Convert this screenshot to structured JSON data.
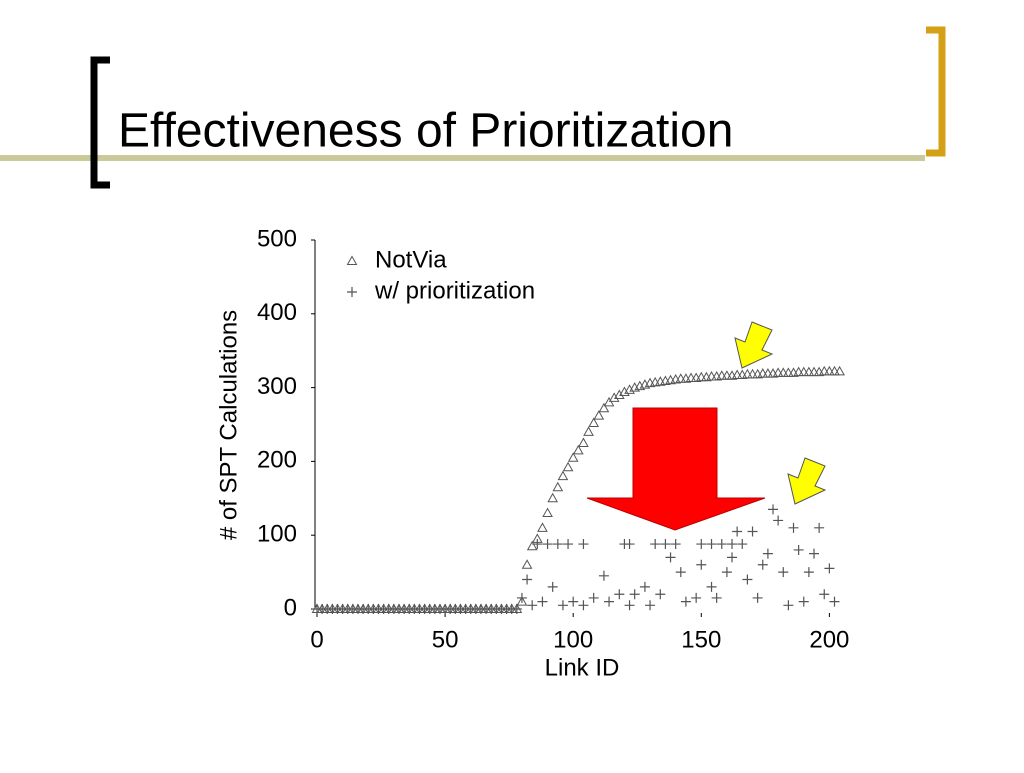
{
  "slide_title": "Effectiveness of Prioritization",
  "chart_data": {
    "type": "scatter",
    "xlabel": "Link ID",
    "ylabel": "# of SPT Calculations",
    "xlim": [
      0,
      210
    ],
    "ylim": [
      0,
      500
    ],
    "xticks": [
      0,
      50,
      100,
      150,
      200
    ],
    "yticks": [
      0,
      100,
      200,
      300,
      400,
      500
    ],
    "legend": "top-left",
    "series": [
      {
        "name": "NotVia",
        "marker": "triangle",
        "color": "#555555",
        "x": [
          0,
          2,
          4,
          6,
          8,
          10,
          12,
          14,
          16,
          18,
          20,
          22,
          24,
          26,
          28,
          30,
          32,
          34,
          36,
          38,
          40,
          42,
          44,
          46,
          48,
          50,
          52,
          54,
          56,
          58,
          60,
          62,
          64,
          66,
          68,
          70,
          72,
          74,
          76,
          78,
          80,
          82,
          84,
          86,
          88,
          90,
          92,
          94,
          96,
          98,
          100,
          102,
          104,
          106,
          108,
          110,
          112,
          114,
          116,
          118,
          120,
          122,
          124,
          126,
          128,
          130,
          132,
          134,
          136,
          138,
          140,
          142,
          144,
          146,
          148,
          150,
          152,
          154,
          156,
          158,
          160,
          162,
          164,
          166,
          168,
          170,
          172,
          174,
          176,
          178,
          180,
          182,
          184,
          186,
          188,
          190,
          192,
          194,
          196,
          198,
          200,
          202,
          204
        ],
        "values": [
          0,
          0,
          0,
          0,
          0,
          0,
          0,
          0,
          0,
          0,
          0,
          0,
          0,
          0,
          0,
          0,
          0,
          0,
          0,
          0,
          0,
          0,
          0,
          0,
          0,
          0,
          0,
          0,
          0,
          0,
          0,
          0,
          0,
          0,
          0,
          0,
          0,
          0,
          0,
          0,
          10,
          60,
          85,
          95,
          110,
          130,
          150,
          165,
          180,
          192,
          205,
          215,
          225,
          240,
          252,
          262,
          272,
          280,
          286,
          290,
          294,
          297,
          300,
          302,
          304,
          306,
          307,
          308,
          309,
          310,
          311,
          312,
          312,
          313,
          313,
          314,
          314,
          315,
          315,
          316,
          316,
          316,
          317,
          317,
          318,
          318,
          318,
          319,
          319,
          319,
          320,
          320,
          320,
          320,
          321,
          321,
          321,
          321,
          321,
          322,
          322,
          322,
          322
        ]
      },
      {
        "name": "w/ prioritization",
        "marker": "plus",
        "color": "#555555",
        "x": [
          0,
          2,
          4,
          6,
          8,
          10,
          12,
          14,
          16,
          18,
          20,
          22,
          24,
          26,
          28,
          30,
          32,
          34,
          36,
          38,
          40,
          42,
          44,
          46,
          48,
          50,
          52,
          54,
          56,
          58,
          60,
          62,
          64,
          66,
          68,
          70,
          72,
          74,
          76,
          78,
          86,
          90,
          94,
          98,
          104,
          120,
          122,
          132,
          136,
          140,
          150,
          154,
          158,
          162,
          166,
          80,
          82,
          84,
          88,
          92,
          96,
          100,
          104,
          108,
          112,
          114,
          118,
          122,
          124,
          128,
          130,
          134,
          138,
          142,
          144,
          148,
          150,
          154,
          156,
          160,
          162,
          164,
          168,
          170,
          172,
          174,
          176,
          178,
          180,
          182,
          184,
          186,
          188,
          190,
          192,
          194,
          196,
          198,
          200,
          202
        ],
        "values": [
          0,
          0,
          0,
          0,
          0,
          0,
          0,
          0,
          0,
          0,
          0,
          0,
          0,
          0,
          0,
          0,
          0,
          0,
          0,
          0,
          0,
          0,
          0,
          0,
          0,
          0,
          0,
          0,
          0,
          0,
          0,
          0,
          0,
          0,
          0,
          0,
          0,
          0,
          0,
          0,
          88,
          88,
          88,
          88,
          88,
          88,
          88,
          88,
          88,
          88,
          88,
          88,
          88,
          88,
          88,
          15,
          40,
          5,
          10,
          30,
          5,
          10,
          5,
          15,
          45,
          10,
          20,
          5,
          20,
          30,
          5,
          20,
          70,
          50,
          10,
          15,
          60,
          30,
          15,
          50,
          70,
          105,
          40,
          105,
          15,
          60,
          75,
          135,
          120,
          50,
          5,
          110,
          80,
          10,
          50,
          75,
          110,
          20,
          55,
          10
        ]
      }
    ]
  }
}
